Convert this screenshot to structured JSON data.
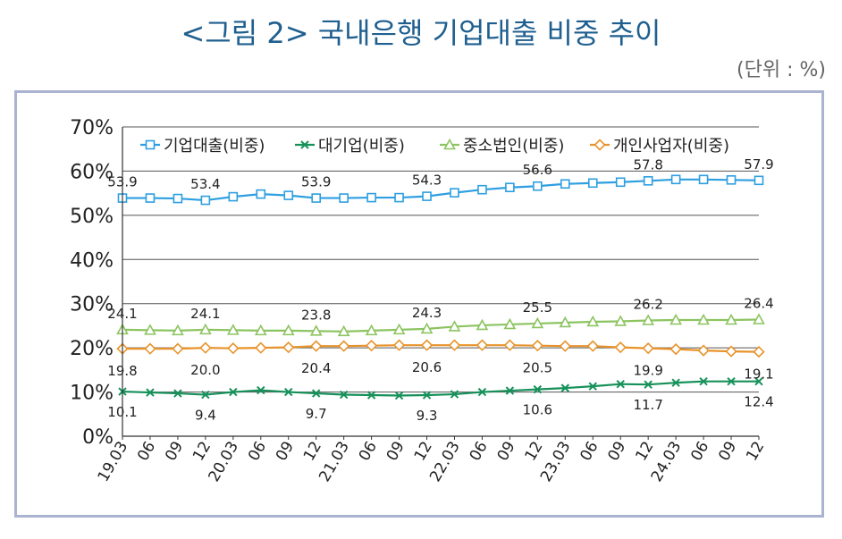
{
  "header": {
    "title": "<그림 2> 국내은행 기업대출 비중 추이",
    "unit": "(단위 : %)"
  },
  "chart_data": {
    "type": "line",
    "ylim": [
      0,
      70
    ],
    "yticks": [
      "0%",
      "10%",
      "20%",
      "30%",
      "40%",
      "50%",
      "60%",
      "70%"
    ],
    "grid": true,
    "legend_position": "top",
    "categories": [
      "19.03",
      "06",
      "09",
      "12",
      "20.03",
      "06",
      "09",
      "12",
      "21.03",
      "06",
      "09",
      "12",
      "22.03",
      "06",
      "09",
      "12",
      "23.03",
      "06",
      "09",
      "12",
      "24.03",
      "06",
      "09",
      "12"
    ],
    "series": [
      {
        "name": "기업대출(비중)",
        "color": "#2e9fe0",
        "marker": "square",
        "values": [
          53.9,
          53.9,
          53.8,
          53.4,
          54.2,
          54.8,
          54.5,
          53.9,
          53.9,
          54.0,
          54.0,
          54.3,
          55.1,
          55.8,
          56.3,
          56.6,
          57.1,
          57.3,
          57.5,
          57.8,
          58.1,
          58.1,
          58.0,
          57.9
        ],
        "labels": [
          "53.9",
          "",
          "",
          "53.4",
          "",
          "",
          "",
          "53.9",
          "",
          "",
          "",
          "54.3",
          "",
          "",
          "",
          "56.6",
          "",
          "",
          "",
          "57.8",
          "",
          "",
          "",
          "57.9"
        ]
      },
      {
        "name": "대기업(비중)",
        "color": "#16915a",
        "marker": "x",
        "values": [
          10.1,
          9.9,
          9.7,
          9.4,
          10.0,
          10.4,
          10.0,
          9.7,
          9.4,
          9.3,
          9.2,
          9.3,
          9.5,
          10.0,
          10.3,
          10.6,
          10.9,
          11.3,
          11.8,
          11.7,
          12.1,
          12.4,
          12.4,
          12.4
        ],
        "labels": [
          "10.1",
          "",
          "",
          "9.4",
          "",
          "",
          "",
          "9.7",
          "",
          "",
          "",
          "9.3",
          "",
          "",
          "",
          "10.6",
          "",
          "",
          "",
          "11.7",
          "",
          "",
          "",
          "12.4"
        ]
      },
      {
        "name": "중소법인(비중)",
        "color": "#8cc460",
        "marker": "triangle",
        "values": [
          24.1,
          24.0,
          23.9,
          24.1,
          24.0,
          23.9,
          23.9,
          23.8,
          23.7,
          23.9,
          24.1,
          24.3,
          24.8,
          25.1,
          25.3,
          25.5,
          25.7,
          25.9,
          26.0,
          26.2,
          26.3,
          26.3,
          26.3,
          26.4
        ],
        "labels": [
          "24.1",
          "",
          "",
          "24.1",
          "",
          "",
          "",
          "23.8",
          "",
          "",
          "",
          "24.3",
          "",
          "",
          "",
          "25.5",
          "",
          "",
          "",
          "26.2",
          "",
          "",
          "",
          "26.4"
        ]
      },
      {
        "name": "개인사업자(비중)",
        "color": "#e8932a",
        "marker": "diamond",
        "values": [
          19.8,
          19.8,
          19.8,
          20.0,
          19.9,
          20.0,
          20.1,
          20.4,
          20.4,
          20.5,
          20.6,
          20.6,
          20.6,
          20.6,
          20.6,
          20.5,
          20.4,
          20.4,
          20.1,
          19.9,
          19.7,
          19.4,
          19.2,
          19.1
        ],
        "labels": [
          "19.8",
          "",
          "",
          "20.0",
          "",
          "",
          "",
          "20.4",
          "",
          "",
          "",
          "20.6",
          "",
          "",
          "",
          "20.5",
          "",
          "",
          "",
          "19.9",
          "",
          "",
          "",
          "19.1"
        ]
      }
    ]
  }
}
